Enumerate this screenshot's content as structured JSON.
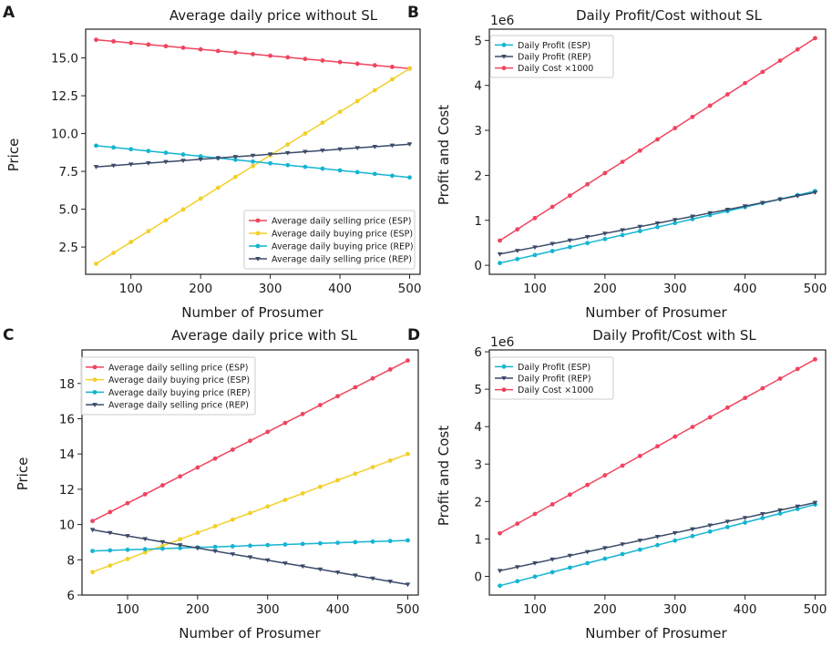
{
  "colors": {
    "red": "#f0445f",
    "yellow": "#f2d02b",
    "cyan": "#13b5d1",
    "navy": "#3b4a68"
  },
  "chart_data": [
    {
      "panel": "A",
      "type": "line",
      "title": "Average daily price without SL",
      "xlabel": "Number of Prosumer",
      "ylabel": "Price",
      "xlim": [
        35,
        515
      ],
      "ylim": [
        0.7,
        16.9
      ],
      "xticks": [
        100,
        200,
        300,
        400,
        500
      ],
      "xtick_labels": [
        "100",
        "200",
        "300",
        "400",
        "500"
      ],
      "yticks": [
        2.5,
        5.0,
        7.5,
        10.0,
        12.5,
        15.0
      ],
      "ytick_labels": [
        "2.5",
        "5.0",
        "7.5",
        "10.0",
        "12.5",
        "15.0"
      ],
      "offset_label": "",
      "legend_position": "lower-right",
      "x_start": 50,
      "x_end": 500,
      "x_step": 25,
      "series": [
        {
          "name": "Average daily selling price (ESP)",
          "color": "red",
          "marker": "circle",
          "start": 16.2,
          "end": 14.3
        },
        {
          "name": "Average daily buying price (ESP)",
          "color": "yellow",
          "marker": "circle",
          "start": 1.4,
          "end": 14.3
        },
        {
          "name": "Average daily buying price (REP)",
          "color": "cyan",
          "marker": "circle",
          "start": 9.2,
          "end": 7.1
        },
        {
          "name": "Average daily selling price (REP)",
          "color": "navy",
          "marker": "triangle",
          "start": 7.8,
          "end": 9.3
        }
      ]
    },
    {
      "panel": "B",
      "type": "line",
      "title": "Daily Profit/Cost without SL",
      "xlabel": "Number of Prosumer",
      "ylabel": "Profit and Cost",
      "xlim": [
        35,
        515
      ],
      "ylim": [
        -0.2,
        5.25
      ],
      "xticks": [
        100,
        200,
        300,
        400,
        500
      ],
      "xtick_labels": [
        "100",
        "200",
        "300",
        "400",
        "500"
      ],
      "yticks": [
        0,
        1,
        2,
        3,
        4,
        5
      ],
      "ytick_labels": [
        "0",
        "1",
        "2",
        "3",
        "4",
        "5"
      ],
      "offset_label": "1e6",
      "legend_position": "upper-left",
      "x_start": 50,
      "x_end": 500,
      "x_step": 25,
      "series": [
        {
          "name": "Daily Profit (ESP)",
          "color": "cyan",
          "marker": "circle",
          "start": 0.05,
          "end": 1.65
        },
        {
          "name": "Daily Profit (REP)",
          "color": "navy",
          "marker": "triangle",
          "start": 0.25,
          "end": 1.62
        },
        {
          "name": "Daily Cost ×1000",
          "color": "red",
          "marker": "circle",
          "start": 0.55,
          "end": 5.05
        }
      ]
    },
    {
      "panel": "C",
      "type": "line",
      "title": "Average daily price with SL",
      "xlabel": "Number of Prosumer",
      "ylabel": "Price",
      "xlim": [
        35,
        515
      ],
      "ylim": [
        6.0,
        19.9
      ],
      "xticks": [
        100,
        200,
        300,
        400,
        500
      ],
      "xtick_labels": [
        "100",
        "200",
        "300",
        "400",
        "500"
      ],
      "yticks": [
        6,
        8,
        10,
        12,
        14,
        16,
        18
      ],
      "ytick_labels": [
        "6",
        "8",
        "10",
        "12",
        "14",
        "16",
        "18"
      ],
      "offset_label": "",
      "legend_position": "upper-left",
      "x_start": 50,
      "x_end": 500,
      "x_step": 25,
      "series": [
        {
          "name": "Average daily selling price (ESP)",
          "color": "red",
          "marker": "circle",
          "start": 10.2,
          "end": 19.3
        },
        {
          "name": "Average daily buying price (ESP)",
          "color": "yellow",
          "marker": "circle",
          "start": 7.3,
          "end": 14.0
        },
        {
          "name": "Average daily buying price (REP)",
          "color": "cyan",
          "marker": "circle",
          "start": 8.5,
          "end": 9.1
        },
        {
          "name": "Average daily selling price (REP)",
          "color": "navy",
          "marker": "triangle",
          "start": 9.7,
          "end": 6.6
        }
      ]
    },
    {
      "panel": "D",
      "type": "line",
      "title": "Daily Profit/Cost with SL",
      "xlabel": "Number of Prosumer",
      "ylabel": "Profit and Cost",
      "xlim": [
        35,
        515
      ],
      "ylim": [
        -0.5,
        6.05
      ],
      "xticks": [
        100,
        200,
        300,
        400,
        500
      ],
      "xtick_labels": [
        "100",
        "200",
        "300",
        "400",
        "500"
      ],
      "yticks": [
        0,
        1,
        2,
        3,
        4,
        5,
        6
      ],
      "ytick_labels": [
        "0",
        "1",
        "2",
        "3",
        "4",
        "5",
        "6"
      ],
      "offset_label": "1e6",
      "legend_position": "upper-left",
      "x_start": 50,
      "x_end": 500,
      "x_step": 25,
      "series": [
        {
          "name": "Daily Profit (ESP)",
          "color": "cyan",
          "marker": "circle",
          "start": -0.25,
          "end": 1.92
        },
        {
          "name": "Daily Profit (REP)",
          "color": "navy",
          "marker": "triangle",
          "start": 0.15,
          "end": 1.97
        },
        {
          "name": "Daily Cost ×1000",
          "color": "red",
          "marker": "circle",
          "start": 1.15,
          "end": 5.8
        }
      ]
    }
  ]
}
